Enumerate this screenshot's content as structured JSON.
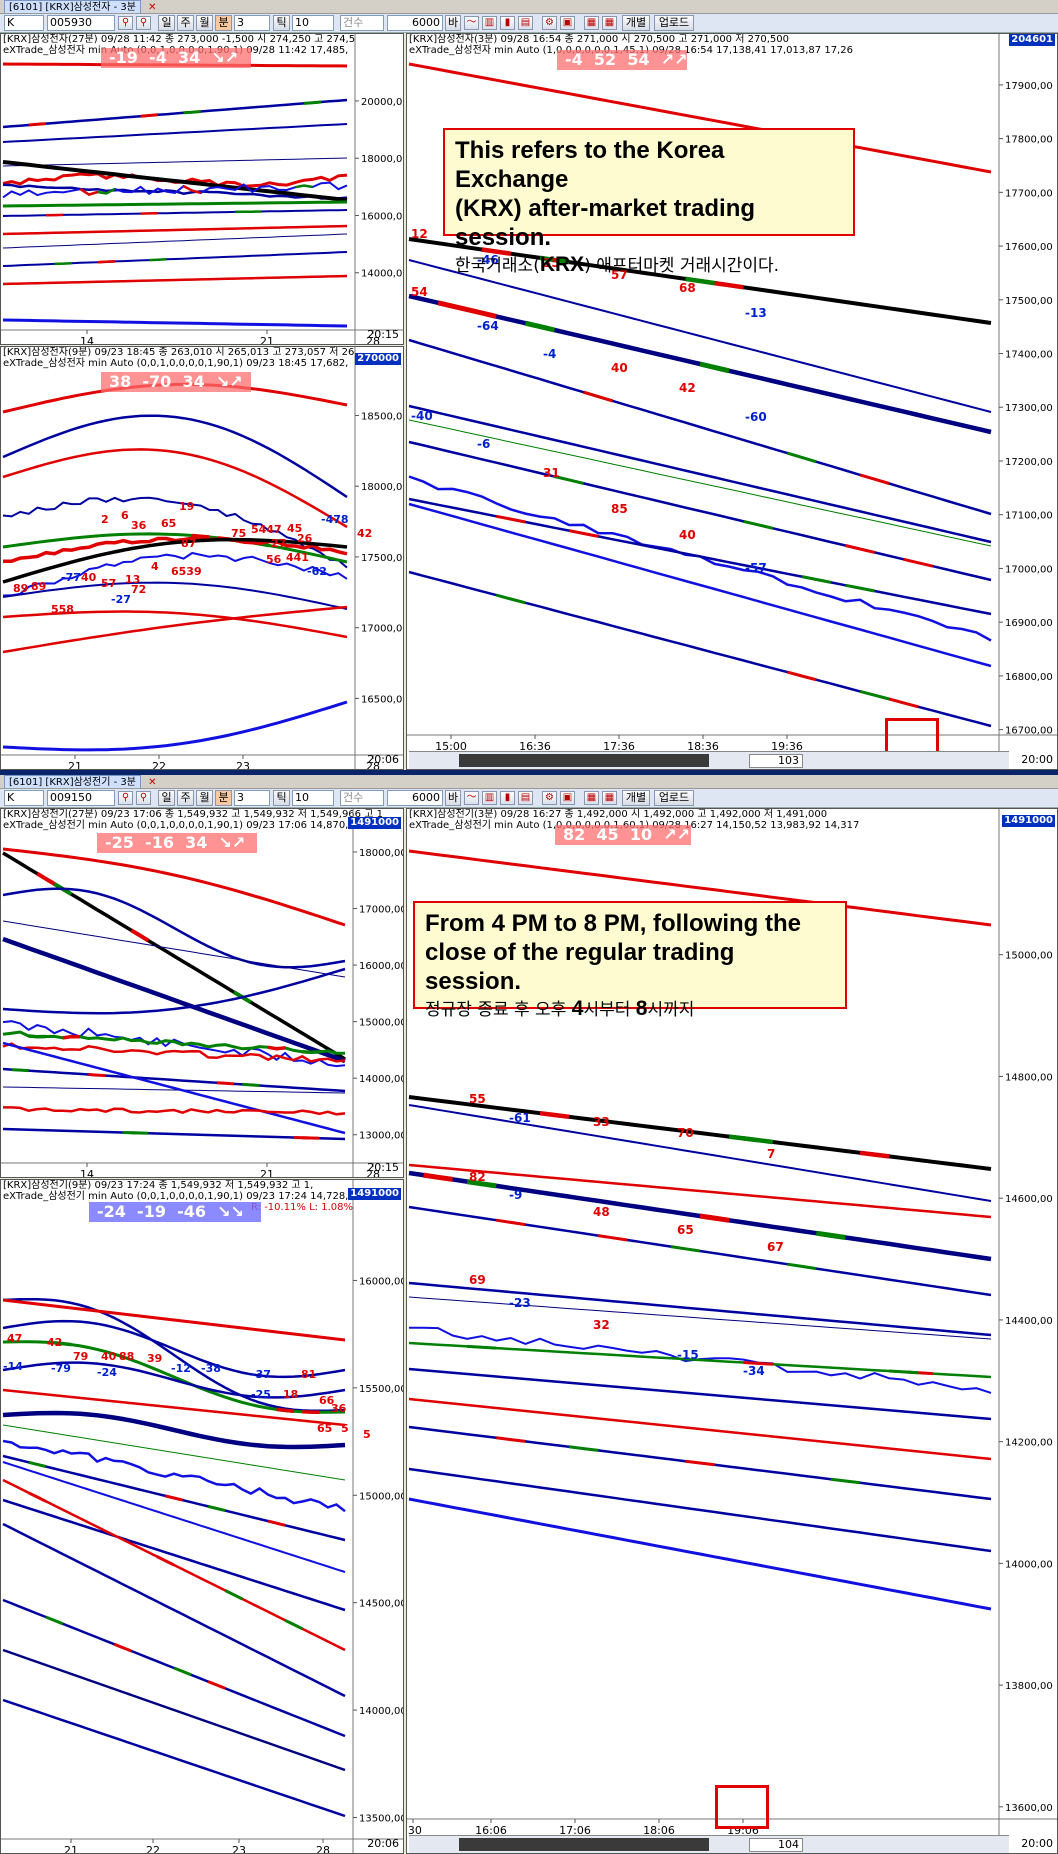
{
  "top": {
    "title": "[6101] [KRX]삼성전자 - 3분",
    "toolbar": {
      "market": "K",
      "code": "005930",
      "periods": [
        "일",
        "주",
        "월",
        "분"
      ],
      "minute_value": "3",
      "tick_label": "틱",
      "tick_value": "10",
      "count_label": "건수",
      "count_value": "6000",
      "unit_label": "바",
      "individual_label": "개별",
      "upload_label": "업로드"
    },
    "weekly": {
      "header1": "[KRX]삼성전자(27분) 09/28 11:42  종 273,000 -1,500  시 274,250 고 274,5",
      "header2": "eXTrade_삼성전자 min Auto  (0,0,1,0,0,0,0,1,90,1) 09/28 11:42 17,485,",
      "signal": "-19  -4  34  ↘↗",
      "corner": "20:15"
    },
    "tri": {
      "header1": "[KRX]삼성전자(9분) 09/23 18:45  종 263,010  시 265,013  고 273,057 저 26",
      "header2": "eXTrade_삼성전자 min Auto  (0,0,1,0,0,0,0,1,90,1) 09/23 18:45 17,682,",
      "signal": "38  -70  34  ↘↗",
      "corner": "20:06",
      "price_tag": "270000"
    },
    "main": {
      "header1": "[KRX]삼성전자(3분) 09/28 16:54  종 271,000   시 270,500 고 271,000 저 270,500",
      "header2": "eXTrade_삼성전자 min Auto  (1,0,0,0,0,0,0,1,45,1) 09/28 16:54 17,138,41 17,013,87 17,26",
      "signal": "-4  52  54  ↗↗",
      "corner": "20:00",
      "count": "103",
      "price_tag": "204601"
    },
    "note": {
      "en1": "This refers to the Korea Exchange",
      "en2": "(KRX) after-market trading session.",
      "ko_a": "한국거래소(",
      "ko_b": "KRX",
      "ko_c": ") 애프터마켓 거래시간이다."
    }
  },
  "bottom": {
    "title": "[6101] [KRX]삼성전기 - 3분",
    "toolbar": {
      "market": "K",
      "code": "009150",
      "periods": [
        "일",
        "주",
        "월",
        "분"
      ],
      "minute_value": "3",
      "tick_label": "틱",
      "tick_value": "10",
      "count_label": "건수",
      "count_value": "6000",
      "unit_label": "바",
      "individual_label": "개별",
      "upload_label": "업로드"
    },
    "weekly": {
      "header1": "[KRX]삼성전기(27분) 09/23 17:06  종 1,549,932 고 1,549,932 저 1,549,966 고 1",
      "header2": "eXTrade_삼성전기 min Auto  (0,0,1,0,0,0,0,1,90,1) 09/23 17:06 14,870,",
      "signal": "-25  -16  34  ↘↗",
      "corner": "20:15",
      "price_tag": "1491000"
    },
    "tri": {
      "header1": "[KRX]삼성전기(9분) 09/23 17:24  종 1,549,932 저 1,549,932 고 1,",
      "header2": "eXTrade_삼성전기 min Auto  (0,0,1,0,0,0,0,1,90,1) 09/23 17:24 14,728,",
      "header3": "R: -10.11%  L: 1.08%",
      "signal": "-24  -19  -46  ↘↘",
      "corner": "20:06",
      "price_tag": "1491000"
    },
    "main": {
      "header1": "[KRX]삼성전기(3분) 09/28 16:27  종 1,492,000   시 1,492,000 고 1,492,000 저 1,491,000",
      "header2": "eXTrade_삼성전기 min Auto  (1,0,0,0,0,0,0,1,60,1) 09/28 16:27 14,150,52 13,983,92 14,317",
      "signal": "82  45  10  ↗↗",
      "corner": "20:00",
      "count": "104",
      "price_tag": "1491000"
    },
    "note": {
      "en1": "From 4 PM to 8 PM, following the",
      "en2": "close of the regular trading session.",
      "ko_a": "정규장 종료 후 오후 ",
      "ko_b": "4",
      "ko_c": "시부터 ",
      "ko_d": "8",
      "ko_e": "시까지"
    }
  },
  "chart_data": [
    {
      "type": "line",
      "panel": "top-weekly",
      "categories": [
        "14",
        "21",
        "28"
      ],
      "y_ticks": [
        "20000,00",
        "18000,00",
        "16000,00",
        "14000,00"
      ],
      "ylim": [
        12000,
        21500
      ],
      "colors": [
        "#e00000",
        "#0000a0",
        "#1010e0",
        "#008000",
        "#000000"
      ]
    },
    {
      "type": "line",
      "panel": "top-tri",
      "categories": [
        "21",
        "22",
        "23",
        "28"
      ],
      "y_ticks": [
        "18500,00",
        "18000,00",
        "17500,00",
        "17000,00",
        "16500,00"
      ],
      "ylim": [
        16100,
        18800
      ],
      "annotations": [
        "2",
        "6",
        "36",
        "65",
        "19",
        "-77",
        "40",
        "57",
        "13",
        "4",
        "72",
        "-27",
        "87",
        "6539",
        "75",
        "5447",
        "45",
        "26",
        "56",
        "441",
        "27",
        "-62",
        "-478",
        "42",
        "89",
        "89",
        "558"
      ]
    },
    {
      "type": "line",
      "panel": "top-main",
      "x_ticks": [
        "15:00",
        "16:36",
        "17:36",
        "18:36",
        "19:36"
      ],
      "y_ticks": [
        "17900,00",
        "17800,00",
        "17700,00",
        "17600,00",
        "17500,00",
        "17400,00",
        "17300,00",
        "17200,00",
        "17100,00",
        "17000,00",
        "16900,00",
        "16800,00",
        "16700,00"
      ],
      "ylim": [
        16690,
        17950
      ],
      "annotations": [
        "12",
        "-46",
        "35",
        "57",
        "68",
        "-13",
        "54",
        "-64",
        "-4",
        "40",
        "42",
        "-60",
        "-40",
        "-6",
        "31",
        "85",
        "40",
        "-57"
      ]
    },
    {
      "type": "line",
      "panel": "bottom-weekly",
      "categories": [
        "14",
        "21",
        "28"
      ],
      "y_ticks": [
        "18000,00",
        "17000,00",
        "16000,00",
        "15000,00",
        "14000,00",
        "13000,00"
      ],
      "ylim": [
        12500,
        18300
      ]
    },
    {
      "type": "line",
      "panel": "bottom-tri",
      "categories": [
        "21",
        "22",
        "23",
        "28"
      ],
      "y_ticks": [
        "16000,00",
        "15500,00",
        "15000,00",
        "14500,00",
        "14000,00",
        "13500,00"
      ],
      "ylim": [
        13400,
        16300
      ],
      "annotations": [
        "47",
        "42",
        "79",
        "40",
        "88",
        "39",
        "-14",
        "-79",
        "-24",
        "-12",
        "-38",
        "-37",
        "-25",
        "18",
        "66",
        "36",
        "65",
        "5",
        "5",
        "81"
      ]
    },
    {
      "type": "line",
      "panel": "bottom-main",
      "x_ticks": [
        ":30",
        "16:06",
        "17:06",
        "18:06",
        "19:06"
      ],
      "y_ticks": [
        "15000,00",
        "14800,00",
        "14600,00",
        "14400,00",
        "14200,00",
        "14000,00",
        "13800,00",
        "13600,00"
      ],
      "ylim": [
        13580,
        15200
      ],
      "annotations": [
        "55",
        "-61",
        "33",
        "70",
        "7",
        "82",
        "-9",
        "48",
        "65",
        "67",
        "69",
        "-23",
        "32",
        "-15",
        "-34"
      ]
    }
  ]
}
